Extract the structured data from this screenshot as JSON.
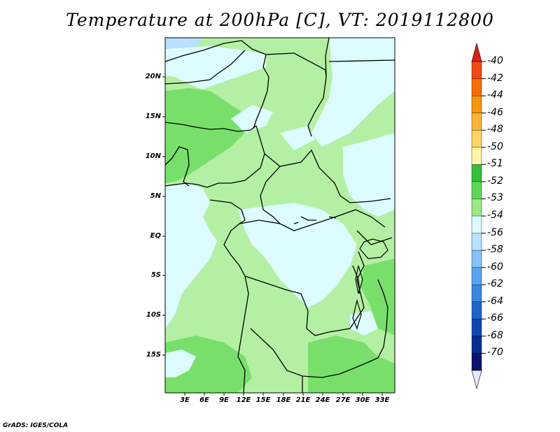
{
  "title": "Temperature at 200hPa [C], VT: 2019112800",
  "credit": "GrADS: IGES/COLA",
  "latitude_labels": [
    "20N",
    "15N",
    "10N",
    "5N",
    "EQ",
    "5S",
    "10S",
    "15S"
  ],
  "longitude_labels": [
    "3E",
    "6E",
    "9E",
    "12E",
    "15E",
    "18E",
    "21E",
    "24E",
    "27E",
    "30E",
    "33E"
  ],
  "colorbar": {
    "labels": [
      "-40",
      "-42",
      "-44",
      "-46",
      "-48",
      "-50",
      "-51",
      "-52",
      "-53",
      "-54",
      "-56",
      "-58",
      "-60",
      "-62",
      "-64",
      "-66",
      "-68",
      "-70"
    ],
    "colors": [
      "#e8261b",
      "#f04a10",
      "#f56e0b",
      "#f8960f",
      "#fbb43a",
      "#fed466",
      "#fdf6a8",
      "#33c03a",
      "#5ed757",
      "#96ea85",
      "#dcfcff",
      "#b8e0ff",
      "#84c3f8",
      "#5aa4ee",
      "#3a86e2",
      "#1e64cc",
      "#0e47ad",
      "#072d8e",
      "#0b146a"
    ],
    "top_cap_color": "#d9201a",
    "bottom_cap_color": "#e8e8f8"
  },
  "map_colors": {
    "very_light": "#dcfcff",
    "light_green": "#b4f0a4",
    "mid_green": "#78e06a",
    "dark_green": "#4cc84a",
    "light_blue": "#b8e0ff"
  }
}
